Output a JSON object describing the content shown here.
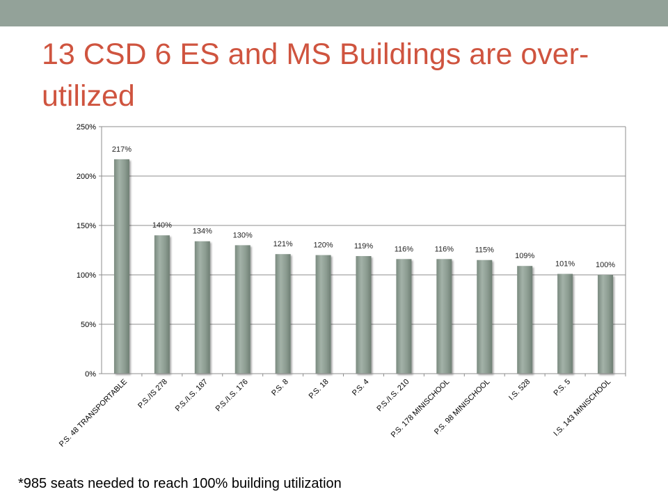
{
  "slide": {
    "title": "13 CSD 6 ES and MS Buildings are over-utilized",
    "footnote": "*985 seats needed to reach 100% building utilization"
  },
  "colors": {
    "top_band": "#93a299",
    "title": "#cf543f",
    "bar": "#8c9c91"
  },
  "chart_data": {
    "type": "bar",
    "categories": [
      "P.S. 48 TRANSPORTABLE",
      "P.S./IS 278",
      "P.S./I.S. 187",
      "P.S./I.S. 176",
      "P.S. 8",
      "P.S. 18",
      "P.S. 4",
      "P.S./I.S. 210",
      "P.S. 178 MINISCHOOL",
      "P.S. 98 MINISCHOOL",
      "I.S. 528",
      "P.S. 5",
      "I.S. 143 MINISCHOOL"
    ],
    "values": [
      217,
      140,
      134,
      130,
      121,
      120,
      119,
      116,
      116,
      115,
      109,
      101,
      100
    ],
    "data_labels": [
      "217%",
      "140%",
      "134%",
      "130%",
      "121%",
      "120%",
      "119%",
      "116%",
      "116%",
      "115%",
      "109%",
      "101%",
      "100%"
    ],
    "y_ticks": [
      0,
      50,
      100,
      150,
      200,
      250
    ],
    "y_tick_labels": [
      "0%",
      "50%",
      "100%",
      "150%",
      "200%",
      "250%"
    ],
    "ylim": [
      0,
      250
    ],
    "grid": true,
    "legend": "none"
  }
}
